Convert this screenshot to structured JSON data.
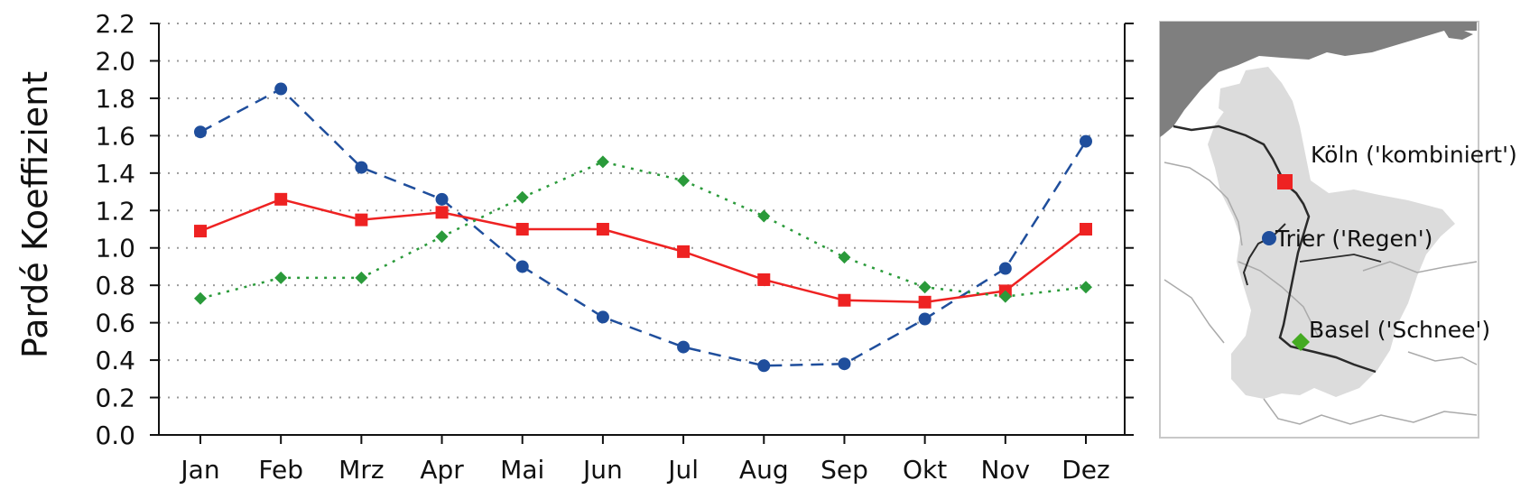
{
  "chart_data": {
    "type": "line",
    "title": "",
    "xlabel": "",
    "ylabel": "Pardé Koeffizient",
    "ylim": [
      0.0,
      2.2
    ],
    "yticks": [
      "0.0",
      "0.2",
      "0.4",
      "0.6",
      "0.8",
      "1.0",
      "1.2",
      "1.4",
      "1.6",
      "1.8",
      "2.0",
      "2.2"
    ],
    "grid": "horizontal dotted",
    "categories": [
      "Jan",
      "Feb",
      "Mrz",
      "Apr",
      "Mai",
      "Jun",
      "Jul",
      "Aug",
      "Sep",
      "Okt",
      "Nov",
      "Dez"
    ],
    "series": [
      {
        "name": "Trier ('Regen')",
        "color": "#1f4e9c",
        "style": "dashed",
        "marker": "circle",
        "values": [
          1.62,
          1.85,
          1.43,
          1.26,
          0.9,
          0.63,
          0.47,
          0.37,
          0.38,
          0.62,
          0.89,
          1.57
        ]
      },
      {
        "name": "Köln ('kombiniert')",
        "color": "#ee2222",
        "style": "solid",
        "marker": "square",
        "values": [
          1.09,
          1.26,
          1.15,
          1.19,
          1.1,
          1.1,
          0.98,
          0.83,
          0.72,
          0.71,
          0.77,
          1.1
        ]
      },
      {
        "name": "Basel ('Schnee')",
        "color": "#2a9a3a",
        "style": "dotted",
        "marker": "diamond",
        "values": [
          0.73,
          0.84,
          0.84,
          1.06,
          1.27,
          1.46,
          1.36,
          1.17,
          0.95,
          0.79,
          0.74,
          0.79
        ]
      }
    ]
  },
  "map": {
    "labels": {
      "koeln": "Köln ('kombiniert')",
      "trier": "Trier ('Regen')",
      "basel": "Basel ('Schnee')"
    },
    "colors": {
      "sea": "#7f7f7f",
      "land": "#ffffff",
      "basin": "#dcdcdc",
      "river": "#2a2a2a",
      "koeln_marker": "#ee2222",
      "trier_marker": "#1f4e9c",
      "basel_marker": "#44aa22"
    }
  }
}
